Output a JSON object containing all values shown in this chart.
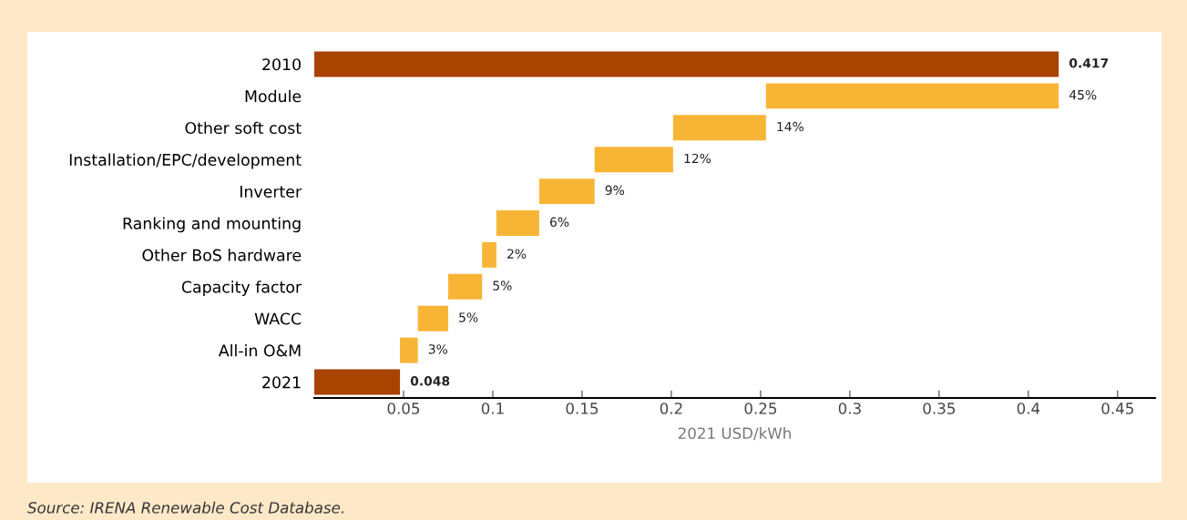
{
  "chart_data": {
    "type": "bar",
    "orientation": "horizontal",
    "xlabel": "2021 USD/kWh",
    "categories": [
      "2010",
      "Module",
      "Other soft cost",
      "Installation/EPC/development",
      "Inverter",
      "Ranking and mounting",
      "Other BoS hardware",
      "Capacity factor",
      "WACC",
      "All-in O&M",
      "2021"
    ],
    "values": [
      0.417,
      0.164,
      0.052,
      0.044,
      0.031,
      0.024,
      0.008,
      0.019,
      0.017,
      0.01,
      0.048
    ],
    "base": [
      0,
      0.253,
      0.201,
      0.157,
      0.126,
      0.102,
      0.094,
      0.075,
      0.058,
      0.048,
      0
    ],
    "colors": [
      "#a84300",
      "#f8b535",
      "#f8b535",
      "#f8b535",
      "#f8b535",
      "#f8b535",
      "#f8b535",
      "#f8b535",
      "#f8b535",
      "#f8b535",
      "#a84300"
    ],
    "value_labels": [
      "0.417",
      null,
      null,
      null,
      null,
      null,
      null,
      null,
      null,
      null,
      "0.048"
    ],
    "xlim": [
      0,
      0.471
    ],
    "xticks": [
      0.05,
      0.1,
      0.15,
      0.2,
      0.25,
      0.3,
      0.35,
      0.4,
      0.45
    ],
    "annotations": [
      "Source: IRENA Renewable Cost Database.",
      {
        "text": "45%",
        "x": 0.417,
        "y": "Module"
      },
      {
        "text": "14%",
        "x": 0.253,
        "y": "Other soft cost"
      },
      {
        "text": "12%",
        "x": 0.201,
        "y": "Installation/EPC/development"
      },
      {
        "text": "9%",
        "x": 0.157,
        "y": "Inverter"
      },
      {
        "text": "6%",
        "x": 0.126,
        "y": "Ranking and mounting"
      },
      {
        "text": "2%",
        "x": 0.102,
        "y": "Other BoS hardware"
      },
      {
        "text": "5%",
        "x": 0.094,
        "y": "Capacity factor"
      },
      {
        "text": "5%",
        "x": 0.075,
        "y": "WACC"
      },
      {
        "text": "3%",
        "x": 0.058,
        "y": "All-in O&M"
      }
    ]
  }
}
